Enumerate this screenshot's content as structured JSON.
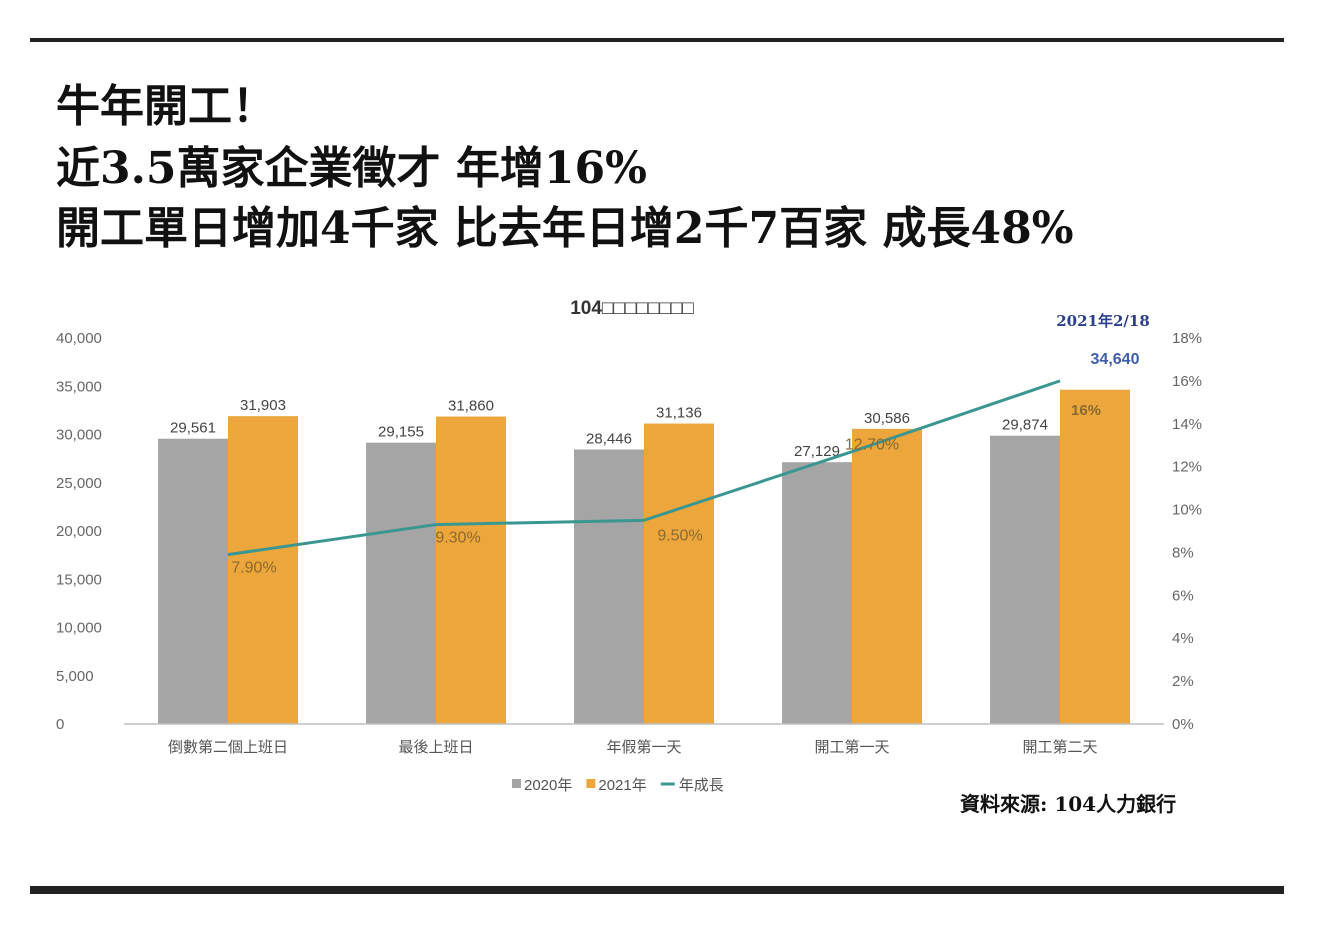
{
  "headline": {
    "line1": "牛年開工！",
    "line2": "近3.5萬家企業徵才  年增16%",
    "line3": "開工單日增加4千家   比去年日增2千7百家  成長48%"
  },
  "source": "資料來源: 104人力銀行",
  "chart_data": {
    "type": "bar",
    "title": "104□□□□□□□□",
    "categories": [
      "倒數第二個上班日",
      "最後上班日",
      "年假第一天",
      "開工第一天",
      "開工第二天"
    ],
    "series": [
      {
        "name": "2020年",
        "kind": "bar",
        "axis": "left",
        "color": "#a5a5a5",
        "values": [
          29561,
          29155,
          28446,
          27129,
          29874
        ],
        "labels": [
          "29,561",
          "29,155",
          "28,446",
          "27,129",
          "29,874"
        ]
      },
      {
        "name": "2021年",
        "kind": "bar",
        "axis": "left",
        "color": "#eda63b",
        "values": [
          31903,
          31860,
          31136,
          30586,
          34640
        ],
        "labels": [
          "31,903",
          "31,860",
          "31,136",
          "30,586",
          "34,640"
        ]
      },
      {
        "name": "年成長",
        "kind": "line",
        "axis": "right",
        "color": "#3a9690",
        "values": [
          7.9,
          9.3,
          9.5,
          12.7,
          16
        ],
        "labels": [
          "7.90%",
          "9.30%",
          "9.50%",
          "12.70%",
          "16%"
        ]
      }
    ],
    "y_left": {
      "min": 0,
      "max": 40000,
      "ticks": [
        "0",
        "5,000",
        "10,000",
        "15,000",
        "20,000",
        "25,000",
        "30,000",
        "35,000",
        "40,000"
      ]
    },
    "y_right": {
      "min": 0,
      "max": 18,
      "ticks": [
        "0%",
        "2%",
        "4%",
        "6%",
        "8%",
        "10%",
        "12%",
        "14%",
        "16%",
        "18%"
      ]
    },
    "annotation": "2021年2/18",
    "legend_position": "bottom",
    "grid": false
  }
}
